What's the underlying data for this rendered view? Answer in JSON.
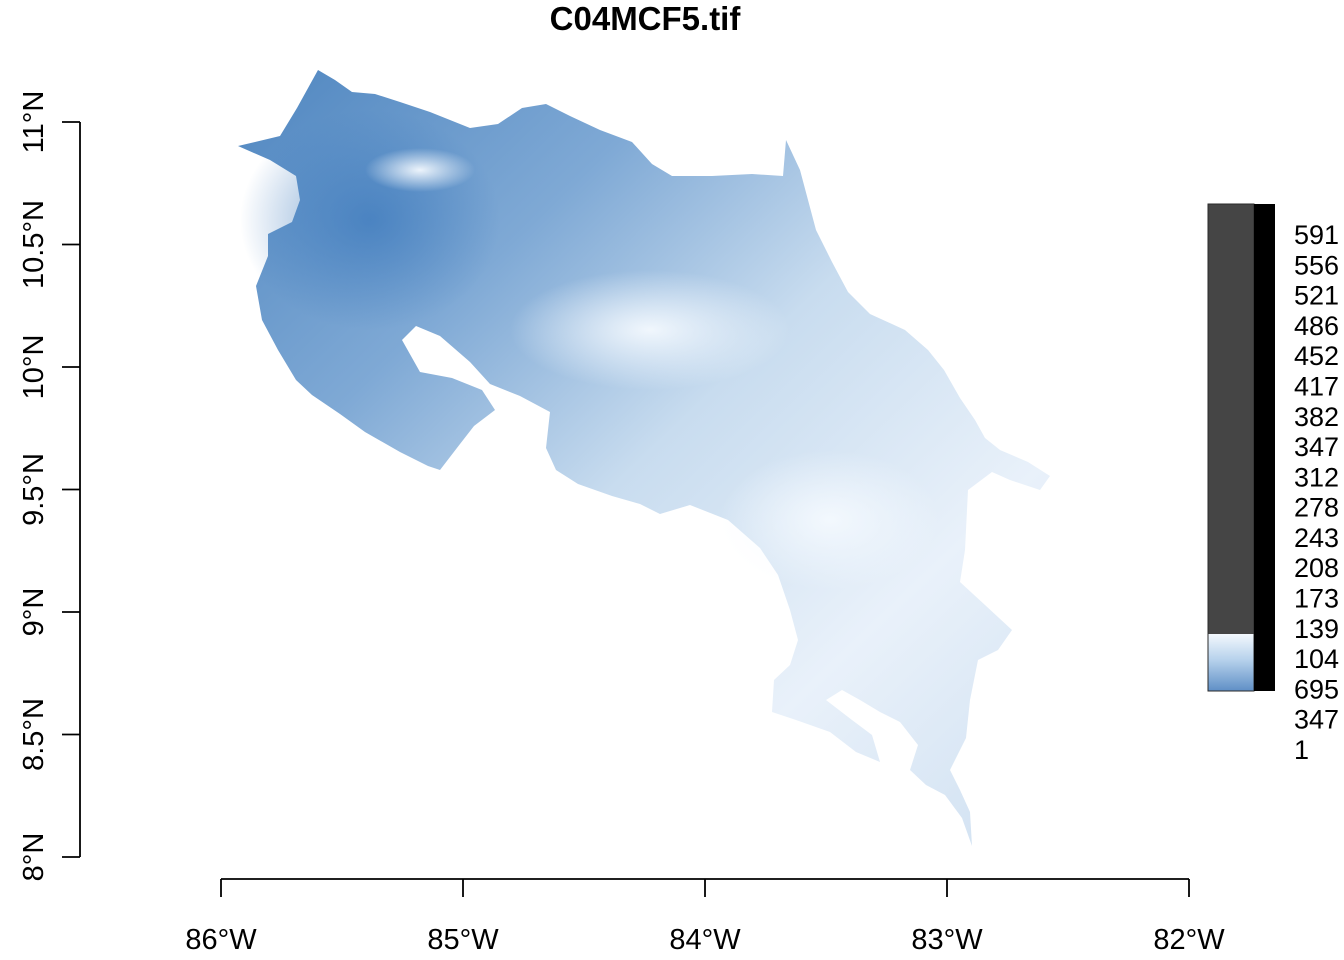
{
  "map": {
    "title": "C04MCF5.tif",
    "x_axis": {
      "ticks": [
        {
          "label": "86°W",
          "value": -86
        },
        {
          "label": "85°W",
          "value": -85
        },
        {
          "label": "84°W",
          "value": -84
        },
        {
          "label": "83°W",
          "value": -83
        },
        {
          "label": "82°W",
          "value": -82
        }
      ]
    },
    "y_axis": {
      "ticks": [
        {
          "label": "8°N",
          "value": 8.0
        },
        {
          "label": "8.5°N",
          "value": 8.5
        },
        {
          "label": "9°N",
          "value": 9.0
        },
        {
          "label": "9.5°N",
          "value": 9.5
        },
        {
          "label": "10°N",
          "value": 10.0
        },
        {
          "label": "10.5°N",
          "value": 10.5
        },
        {
          "label": "11°N",
          "value": 11.0
        }
      ]
    },
    "colors": {
      "raster_dark": "#5b8fc4",
      "raster_mid": "#a9c9e6",
      "raster_light": "#eef5fc",
      "legend_gray": "#454545",
      "legend_black": "#000000"
    },
    "legend": {
      "labels": [
        "591",
        "556",
        "521",
        "486",
        "452",
        "417",
        "382",
        "347",
        "312",
        "278",
        "243",
        "208",
        "173",
        "139",
        "104",
        "695",
        "347",
        "1"
      ]
    }
  }
}
